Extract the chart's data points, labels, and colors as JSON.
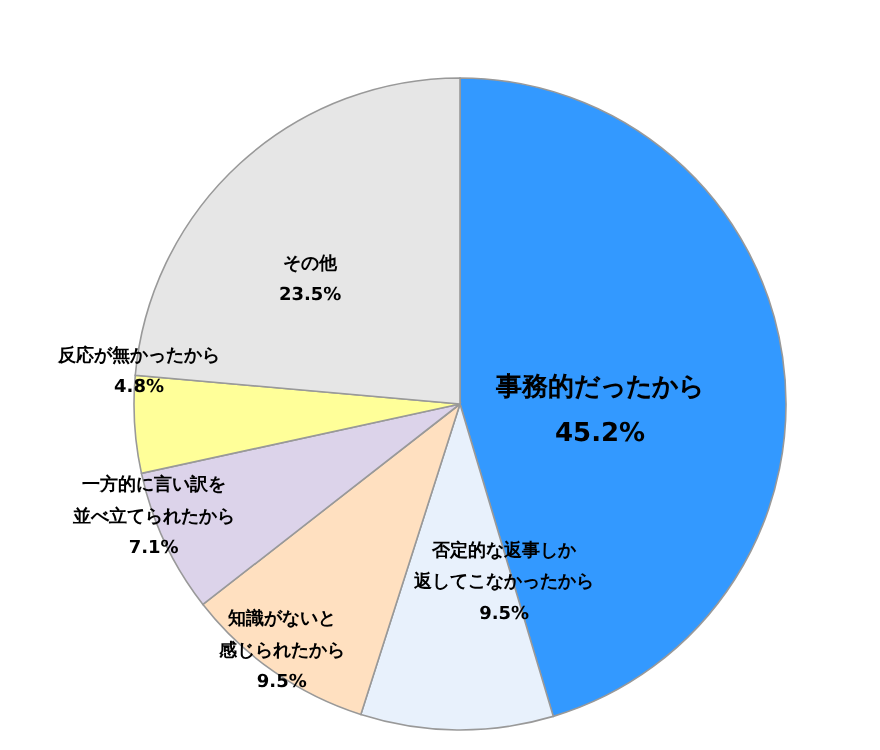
{
  "chart_data": {
    "type": "pie",
    "categories": [
      "事務的だったから",
      "否定的な返事しか返してこなかったから",
      "知識がないと感じられたから",
      "一方的に言い訳を並べ立てられたから",
      "反応が無かったから",
      "その他"
    ],
    "values": [
      45.2,
      9.5,
      9.5,
      7.1,
      4.8,
      23.5
    ],
    "value_labels": [
      "45.2%",
      "9.5%",
      "9.5%",
      "7.1%",
      "4.8%",
      "23.5%"
    ],
    "colors": [
      "#3399ff",
      "#e8f1fc",
      "#ffe0c0",
      "#dcd3ea",
      "#ffff99",
      "#e6e6e6"
    ]
  }
}
